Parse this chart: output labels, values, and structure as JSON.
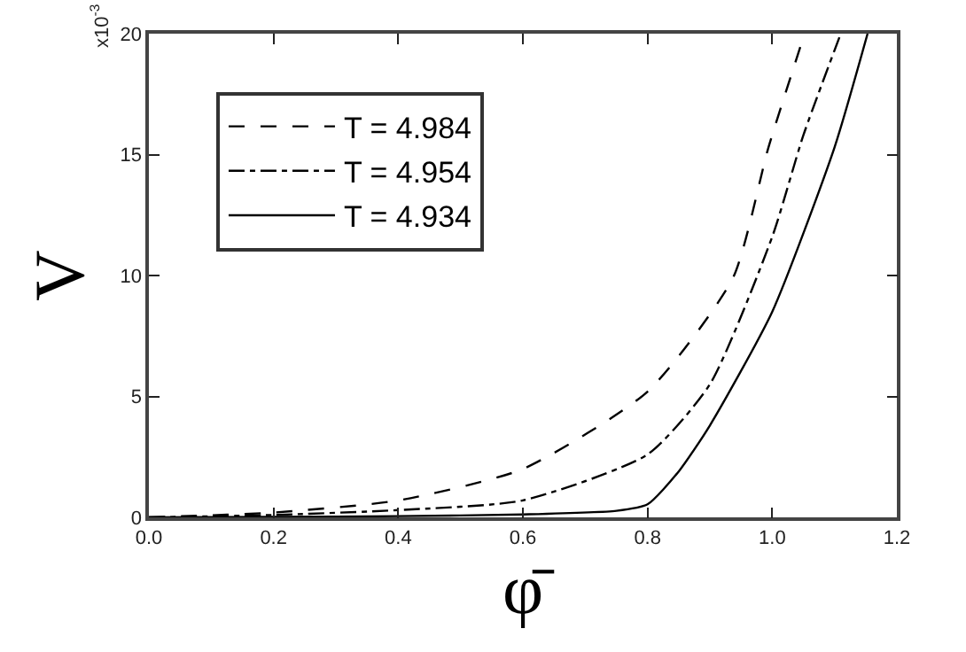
{
  "chart_data": {
    "type": "line",
    "xlabel": "φ̄",
    "ylabel": "V",
    "annotations": [
      "x10$^{-3}$"
    ],
    "xlim": [
      0,
      1.2
    ],
    "ylim": [
      0,
      20
    ],
    "xticks": [
      {
        "value": 0,
        "label": "0.0"
      },
      0.2,
      0.4,
      0.6,
      0.8,
      {
        "value": 1,
        "label": "1.0"
      },
      1.2
    ],
    "yticks": [
      0,
      5,
      10,
      15,
      20
    ],
    "legend": "top left",
    "marker": "none",
    "series": [
      {
        "name": "T = 4.984",
        "color": "#000000",
        "line_style": "dashed",
        "x": [
          0,
          0.2,
          0.4,
          0.6,
          0.8,
          0.937,
          0.994,
          1.052
        ],
        "values": [
          0,
          0.2,
          0.7,
          2.0,
          5.2,
          9.9,
          15.3,
          20
        ]
      },
      {
        "name": "T = 4.954",
        "color": "#000000",
        "line_style": "dashdot",
        "x": [
          0,
          0.2,
          0.4,
          0.6,
          0.8,
          0.9,
          1.0,
          1.05,
          1.11
        ],
        "values": [
          0,
          0.1,
          0.3,
          0.7,
          2.6,
          5.5,
          11.6,
          15.8,
          20
        ]
      },
      {
        "name": "T = 4.934",
        "color": "#000000",
        "line_style": "solid",
        "x": [
          0,
          0.2,
          0.4,
          0.6,
          0.75,
          0.8,
          0.85,
          0.9,
          1.0,
          1.1,
          1.153
        ],
        "values": [
          0,
          0.02,
          0.05,
          0.12,
          0.27,
          0.54,
          1.9,
          3.8,
          8.5,
          15.3,
          20
        ]
      }
    ]
  }
}
